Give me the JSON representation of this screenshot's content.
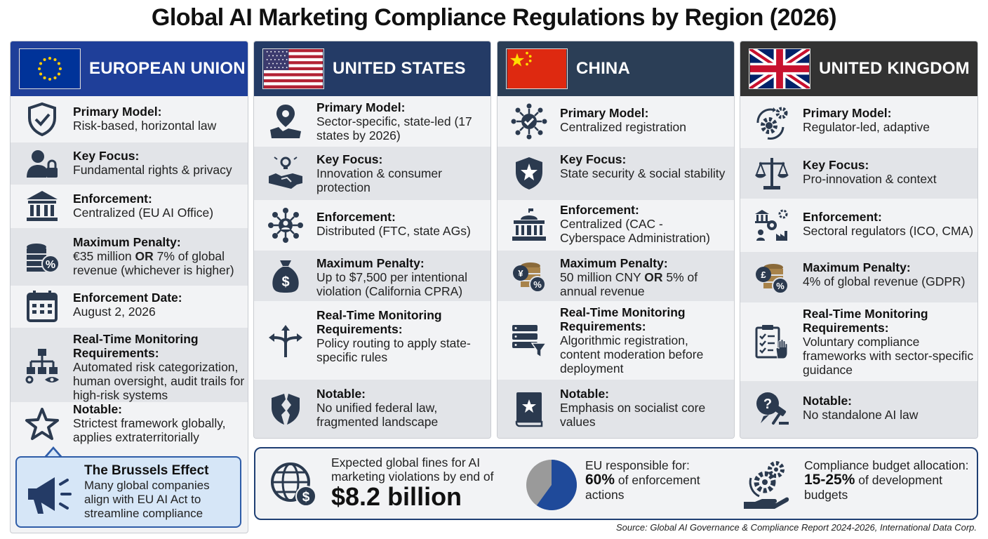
{
  "title": "Global AI Marketing Compliance Regulations by Region (2026)",
  "colors": {
    "eu": "#1f3f99",
    "us": "#243b66",
    "cn": "#2b3e56",
    "uk": "#333333"
  },
  "regions": [
    {
      "name": "EUROPEAN UNION",
      "rows": [
        {
          "icon": "shield-check-icon",
          "label": "Primary Model:",
          "value": "Risk-based, horizontal law"
        },
        {
          "icon": "user-lock-icon",
          "label": "Key Focus:",
          "value": "Fundamental rights & privacy"
        },
        {
          "icon": "government-building-icon",
          "label": "Enforcement:",
          "value": "Centralized (EU AI Office)"
        },
        {
          "icon": "coins-percent-icon",
          "label": "Maximum Penalty:",
          "value_pre": "€35 million ",
          "value_bold": "OR",
          "value_post": " 7% of global revenue (whichever is higher)"
        },
        {
          "icon": "calendar-icon",
          "label": "Enforcement Date:",
          "value": "August 2, 2026"
        },
        {
          "icon": "flowchart-monitor-icon",
          "label": "Real-Time Monitoring Requirements:",
          "value": "Automated risk categorization, human oversight, audit trails for high-risk systems"
        },
        {
          "icon": "star-icon",
          "label": "Notable:",
          "value": "Strictest framework globally, applies extraterritorially"
        }
      ]
    },
    {
      "name": "UNITED STATES",
      "rows": [
        {
          "icon": "map-pin-icon",
          "label": "Primary Model:",
          "value": "Sector-specific, state-led (17 states by 2026)"
        },
        {
          "icon": "handshake-lightbulb-icon",
          "label": "Key Focus:",
          "value": "Innovation & consumer protection"
        },
        {
          "icon": "network-person-icon",
          "label": "Enforcement:",
          "value": "Distributed (FTC, state AGs)"
        },
        {
          "icon": "money-bag-icon",
          "label": "Maximum Penalty:",
          "value": "Up to $7,500 per intentional violation (California CPRA)"
        },
        {
          "icon": "split-arrows-icon",
          "label": "Real-Time Monitoring Requirements:",
          "value": "Policy routing to apply state-specific rules"
        },
        {
          "icon": "broken-shield-icon",
          "label": "Notable:",
          "value": "No unified federal law, fragmented landscape"
        }
      ]
    },
    {
      "name": "CHINA",
      "rows": [
        {
          "icon": "hub-check-icon",
          "label": "Primary Model:",
          "value": "Centralized registration"
        },
        {
          "icon": "shield-star-icon",
          "label": "Key Focus:",
          "value": "State security & social stability"
        },
        {
          "icon": "capitol-building-icon",
          "label": "Enforcement:",
          "value": "Centralized (CAC - Cyberspace Administration)"
        },
        {
          "icon": "yen-coins-icon",
          "label": "Maximum Penalty:",
          "value_pre": "50 million CNY ",
          "value_bold": "OR",
          "value_post": " 5% of annual revenue"
        },
        {
          "icon": "server-filter-icon",
          "label": "Real-Time Monitoring Requirements:",
          "value": "Algorithmic registration, content moderation before deployment"
        },
        {
          "icon": "book-star-icon",
          "label": "Notable:",
          "value": "Emphasis on socialist core values"
        }
      ]
    },
    {
      "name": "UNITED KINGDOM",
      "rows": [
        {
          "icon": "gear-cycle-icon",
          "label": "Primary Model:",
          "value": "Regulator-led, adaptive"
        },
        {
          "icon": "scales-icon",
          "label": "Key Focus:",
          "value": "Pro-innovation & context"
        },
        {
          "icon": "sector-regulators-icon",
          "label": "Enforcement:",
          "value": "Sectoral regulators (ICO, CMA)"
        },
        {
          "icon": "pound-coins-icon",
          "label": "Maximum Penalty:",
          "value": "4% of global revenue (GDPR)"
        },
        {
          "icon": "clipboard-hand-icon",
          "label": "Real-Time Monitoring Requirements:",
          "value": "Voluntary compliance frameworks with sector-specific guidance"
        },
        {
          "icon": "question-gavel-icon",
          "label": "Notable:",
          "value": "No standalone AI law"
        }
      ]
    }
  ],
  "callout": {
    "title": "The Brussels Effect",
    "body": "Many global companies align with EU AI Act to streamline compliance"
  },
  "stats": [
    {
      "icon": "globe-dollar-icon",
      "text": "Expected global fines for AI marketing violations by end of",
      "highlight": "$8.2 billion"
    },
    {
      "icon": "pie-chart-icon",
      "pre": "EU responsible for:",
      "highlight": "60%",
      "post": "of enforcement actions",
      "pie_fraction": 0.6
    },
    {
      "icon": "gear-hand-icon",
      "pre": "Compliance budget allocation:",
      "highlight": "15-25%",
      "post": "of development budgets"
    }
  ],
  "source": "Source: Global AI Governance & Compliance Report 2024-2026, International Data Corp."
}
